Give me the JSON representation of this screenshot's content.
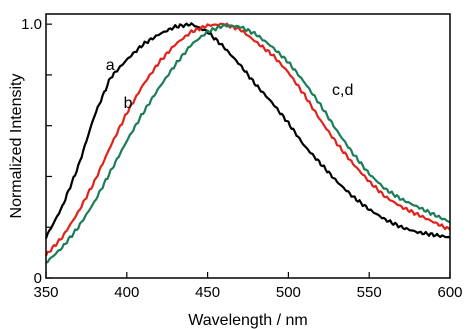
{
  "chart_data": {
    "type": "line",
    "title": "",
    "xlabel": "Wavelength / nm",
    "ylabel": "Normalized Intensity",
    "xlim": [
      350,
      600
    ],
    "ylim": [
      0,
      1.04
    ],
    "x_ticks": [
      350,
      400,
      450,
      500,
      550,
      600
    ],
    "x_tick_labels": [
      "350",
      "400",
      "450",
      "500",
      "550",
      "600"
    ],
    "y_ticks": [
      0,
      0.2,
      0.4,
      0.6,
      0.8,
      1.0
    ],
    "y_tick_labels": [
      "0",
      "",
      "",
      "",
      "",
      "1.0"
    ],
    "grid": false,
    "colors": {
      "a": "#000000",
      "b": "#e0221b",
      "c": "#1a7d55"
    },
    "series": [
      {
        "name": "a",
        "color": "#000000",
        "x": [
          350,
          360,
          370,
          380,
          390,
          400,
          410,
          420,
          430,
          440,
          450,
          460,
          470,
          480,
          490,
          500,
          510,
          520,
          530,
          540,
          550,
          560,
          570,
          580,
          590,
          600
        ],
        "values": [
          0.16,
          0.28,
          0.44,
          0.64,
          0.79,
          0.86,
          0.92,
          0.96,
          0.99,
          1.0,
          0.97,
          0.91,
          0.84,
          0.76,
          0.69,
          0.61,
          0.52,
          0.45,
          0.38,
          0.32,
          0.27,
          0.23,
          0.2,
          0.18,
          0.17,
          0.16
        ]
      },
      {
        "name": "b",
        "color": "#e0221b",
        "x": [
          350,
          360,
          370,
          380,
          390,
          400,
          410,
          420,
          430,
          440,
          450,
          460,
          470,
          480,
          490,
          500,
          510,
          520,
          530,
          540,
          550,
          560,
          570,
          580,
          590,
          600
        ],
        "values": [
          0.09,
          0.16,
          0.26,
          0.38,
          0.52,
          0.65,
          0.76,
          0.85,
          0.92,
          0.97,
          0.995,
          1.0,
          0.98,
          0.93,
          0.88,
          0.81,
          0.72,
          0.62,
          0.53,
          0.45,
          0.38,
          0.32,
          0.28,
          0.25,
          0.22,
          0.19
        ]
      },
      {
        "name": "c,d",
        "color": "#1a7d55",
        "x": [
          350,
          360,
          370,
          380,
          390,
          400,
          410,
          420,
          430,
          440,
          450,
          460,
          470,
          480,
          490,
          500,
          510,
          520,
          530,
          540,
          550,
          560,
          570,
          580,
          590,
          600
        ],
        "values": [
          0.06,
          0.12,
          0.2,
          0.3,
          0.42,
          0.54,
          0.65,
          0.75,
          0.84,
          0.92,
          0.97,
          0.995,
          0.99,
          0.96,
          0.91,
          0.85,
          0.77,
          0.68,
          0.58,
          0.49,
          0.41,
          0.35,
          0.31,
          0.28,
          0.25,
          0.22
        ]
      }
    ],
    "annotations": [
      {
        "text": "a",
        "x": 387,
        "y": 0.82
      },
      {
        "text": "b",
        "x": 398,
        "y": 0.67
      },
      {
        "text": "c,d",
        "x": 527,
        "y": 0.72
      }
    ]
  }
}
